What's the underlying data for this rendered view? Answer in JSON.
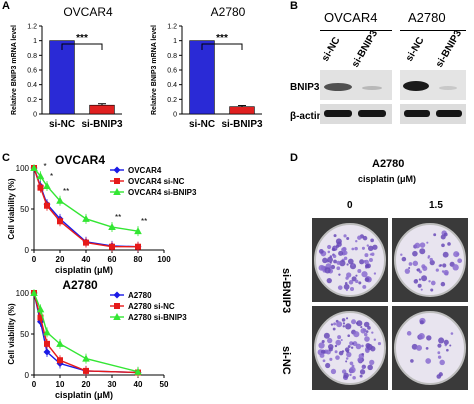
{
  "panels": {
    "a": "A",
    "b": "B",
    "c": "C",
    "d": "D"
  },
  "colors": {
    "blue": "#1a1ae6",
    "red": "#e61a1a",
    "green": "#33e633",
    "dark_red": "#b00000"
  },
  "chart_data": [
    {
      "type": "bar",
      "title": "OVCAR4",
      "ylabel": "Relative BNIP3 mRNA level",
      "categories": [
        "si-NC",
        "si-BNIP3"
      ],
      "values": [
        1.0,
        0.12
      ],
      "errors": [
        0,
        0.02
      ],
      "bar_colors": [
        "#2a2ad6",
        "#e02020"
      ],
      "ylim": [
        0,
        1.2
      ],
      "yticks": [
        "0",
        "0.2",
        "0.4",
        "0.6",
        "0.8",
        "1",
        "1.2"
      ],
      "significance": "***"
    },
    {
      "type": "bar",
      "title": "A2780",
      "ylabel": "Relative BNIP3 mRNA level",
      "categories": [
        "si-NC",
        "si-BNIP3"
      ],
      "values": [
        1.0,
        0.1
      ],
      "errors": [
        0,
        0.015
      ],
      "bar_colors": [
        "#2a2ad6",
        "#e02020"
      ],
      "ylim": [
        0,
        1.2
      ],
      "yticks": [
        "0",
        "0.2",
        "0.4",
        "0.6",
        "0.8",
        "1",
        "1.2"
      ],
      "significance": "***"
    },
    {
      "type": "line",
      "title": "OVCAR4",
      "xlabel": "cisplatin (μM)",
      "ylabel": "Cell viability (%)",
      "x": [
        0,
        5,
        10,
        20,
        40,
        60,
        80
      ],
      "xlim": [
        0,
        100
      ],
      "ylim": [
        0,
        100
      ],
      "xticks": [
        "0",
        "20",
        "40",
        "60",
        "80",
        "100"
      ],
      "yticks": [
        "0",
        "50",
        "100"
      ],
      "legend_position": "top-right",
      "series": [
        {
          "name": "OVCAR4",
          "color": "#1a1ae6",
          "marker": "diamond",
          "values": [
            100,
            78,
            56,
            38,
            10,
            5,
            4
          ]
        },
        {
          "name": "OVCAR4 si-NC",
          "color": "#e61a1a",
          "marker": "square",
          "values": [
            100,
            76,
            54,
            35,
            9,
            4,
            4
          ]
        },
        {
          "name": "OVCAR4 si-BNIP3",
          "color": "#33e633",
          "marker": "triangle",
          "values": [
            100,
            90,
            78,
            60,
            38,
            28,
            23
          ]
        }
      ],
      "annotations": [
        {
          "x": 5,
          "text": "*"
        },
        {
          "x": 10,
          "text": "*"
        },
        {
          "x": 20,
          "text": "**"
        },
        {
          "x": 60,
          "text": "**"
        },
        {
          "x": 80,
          "text": "**"
        }
      ]
    },
    {
      "type": "line",
      "title": "A2780",
      "xlabel": "cisplatin (μM)",
      "ylabel": "Cell viability (%)",
      "x": [
        0,
        2.5,
        5,
        10,
        20,
        40
      ],
      "xlim": [
        0,
        50
      ],
      "ylim": [
        0,
        100
      ],
      "xticks": [
        "0",
        "10",
        "20",
        "30",
        "40",
        "50"
      ],
      "yticks": [
        "0",
        "50",
        "100"
      ],
      "legend_position": "top-right",
      "series": [
        {
          "name": "A2780",
          "color": "#1a1ae6",
          "marker": "diamond",
          "values": [
            100,
            65,
            28,
            14,
            5,
            3
          ]
        },
        {
          "name": "A2780 si-NC",
          "color": "#e61a1a",
          "marker": "square",
          "values": [
            100,
            70,
            38,
            18,
            5,
            3
          ]
        },
        {
          "name": "A2780 si-BNIP3",
          "color": "#33e633",
          "marker": "triangle",
          "values": [
            100,
            80,
            52,
            38,
            20,
            4
          ]
        }
      ]
    }
  ],
  "western": {
    "col_titles": [
      "OVCAR4",
      "A2780"
    ],
    "lanes": [
      "si-NC",
      "si-BNIP3",
      "si-NC",
      "si-BNIP3"
    ],
    "rows": [
      "BNIP3",
      "β-actin"
    ]
  },
  "colony": {
    "title": "A2780",
    "subtitle": "cisplatin (μM)",
    "columns": [
      "0",
      "1.5"
    ],
    "rows": [
      "si-BNIP3",
      "si-NC"
    ]
  }
}
